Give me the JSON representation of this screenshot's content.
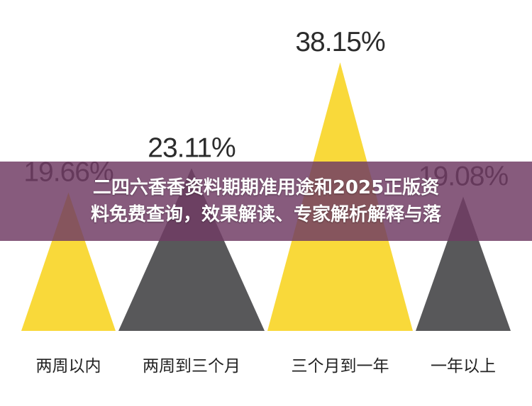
{
  "chart_data": {
    "type": "bar",
    "shape": "triangle",
    "categories": [
      "两周以内",
      "两周到三个月",
      "三个月到一年",
      "一年以上"
    ],
    "values": [
      19.66,
      23.11,
      38.15,
      19.08
    ],
    "value_labels": [
      "19.66%",
      "23.11%",
      "38.15%",
      "19.08%"
    ],
    "colors": [
      "#F9D93A",
      "#58585A",
      "#F9D93A",
      "#58585A"
    ],
    "ylim": [
      0,
      38.15
    ],
    "grid": false,
    "legend": "none",
    "title": "",
    "xlabel": "",
    "ylabel": ""
  },
  "banner": {
    "line1": "二四六香香资料期期准用途和2025正版资",
    "line2": "料免费查询，效果解读、专家解析解释与落"
  }
}
